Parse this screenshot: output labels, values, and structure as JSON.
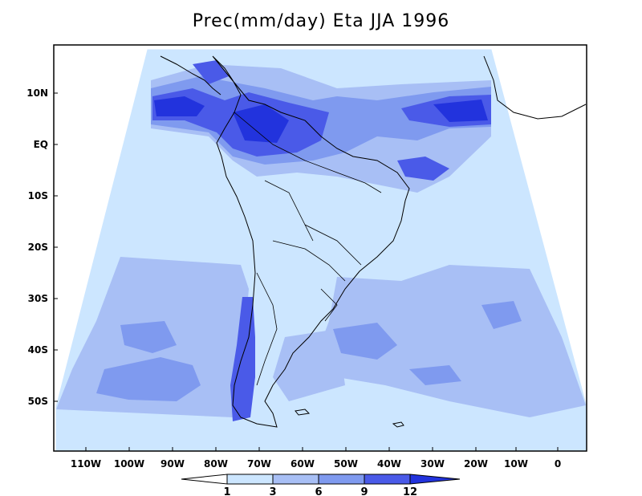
{
  "title": "Prec(mm/day) Eta JJA 1996",
  "lat_labels": [
    "10N",
    "EQ",
    "10S",
    "20S",
    "30S",
    "40S",
    "50S"
  ],
  "lon_labels": [
    "110W",
    "100W",
    "90W",
    "80W",
    "70W",
    "60W",
    "50W",
    "40W",
    "30W",
    "20W",
    "10W",
    "0"
  ],
  "colorbar": {
    "labels": [
      "1",
      "3",
      "6",
      "9",
      "12"
    ],
    "colors": [
      "#ffffff",
      "#cce6ff",
      "#a8bff5",
      "#7f9aef",
      "#4a5ae8",
      "#2233dd"
    ]
  },
  "palette": {
    "c1": "#cce6ff",
    "c2": "#a8bff5",
    "c3": "#7f9aef",
    "c4": "#4a5ae8",
    "c5": "#2233dd"
  }
}
